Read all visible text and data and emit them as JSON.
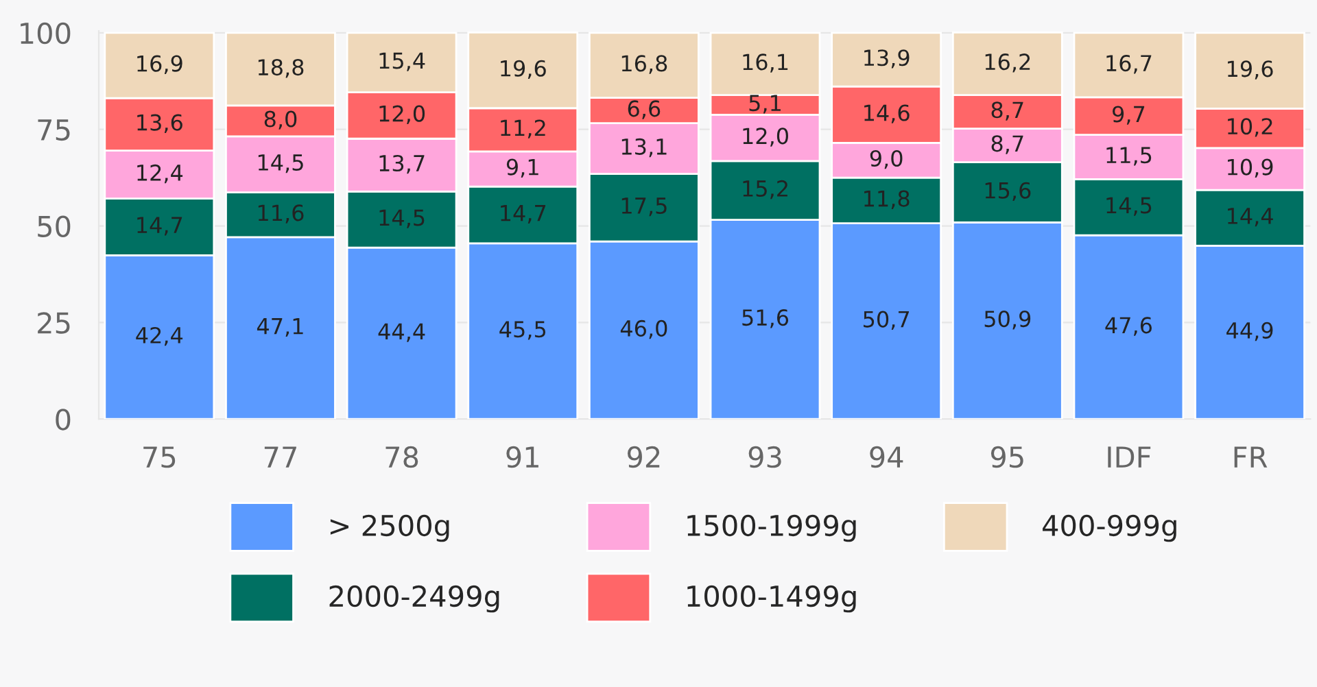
{
  "chart_data": {
    "type": "bar",
    "stacked": true,
    "categories": [
      "75",
      "77",
      "78",
      "91",
      "92",
      "93",
      "94",
      "95",
      "IDF",
      "FR"
    ],
    "ylim": [
      0,
      100.5
    ],
    "yticks": [
      0,
      25,
      50,
      75,
      100
    ],
    "grid": "y",
    "legend": "bottom",
    "series": [
      {
        "name": "> 2500g",
        "color": "#5b9aff",
        "values": [
          42.4,
          47.1,
          44.4,
          45.5,
          46.0,
          51.6,
          50.7,
          50.9,
          47.6,
          44.9
        ],
        "value_labels": [
          "42,4",
          "47,1",
          "44,4",
          "45,5",
          "46,0",
          "51,6",
          "50,7",
          "50,9",
          "47,6",
          "44,9"
        ]
      },
      {
        "name": "2000-2499g",
        "color": "#007062",
        "values": [
          14.7,
          11.6,
          14.5,
          14.7,
          17.5,
          15.2,
          11.8,
          15.6,
          14.5,
          14.4
        ],
        "value_labels": [
          "14,7",
          "11,6",
          "14,5",
          "14,7",
          "17,5",
          "15,2",
          "11,8",
          "15,6",
          "14,5",
          "14,4"
        ]
      },
      {
        "name": "1500-1999g",
        "color": "#ffa6dc",
        "values": [
          12.4,
          14.5,
          13.7,
          9.1,
          13.1,
          12.0,
          9.0,
          8.7,
          11.5,
          10.9
        ],
        "value_labels": [
          "12,4",
          "14,5",
          "13,7",
          "9,1",
          "13,1",
          "12,0",
          "9,0",
          "8,7",
          "11,5",
          "10,9"
        ]
      },
      {
        "name": "1000-1499g",
        "color": "#ff6668",
        "values": [
          13.6,
          8.0,
          12.0,
          11.2,
          6.6,
          5.1,
          14.6,
          8.7,
          9.7,
          10.2
        ],
        "value_labels": [
          "13,6",
          "8,0",
          "12,0",
          "11,2",
          "6,6",
          "5,1",
          "14,6",
          "8,7",
          "9,7",
          "10,2"
        ]
      },
      {
        "name": "400-999g",
        "color": "#efd8ba",
        "values": [
          16.9,
          18.8,
          15.4,
          19.6,
          16.8,
          16.1,
          13.9,
          16.2,
          16.7,
          19.6
        ],
        "value_labels": [
          "16,9",
          "18,8",
          "15,4",
          "19,6",
          "16,8",
          "16,1",
          "13,9",
          "16,2",
          "16,7",
          "19,6"
        ]
      }
    ]
  }
}
